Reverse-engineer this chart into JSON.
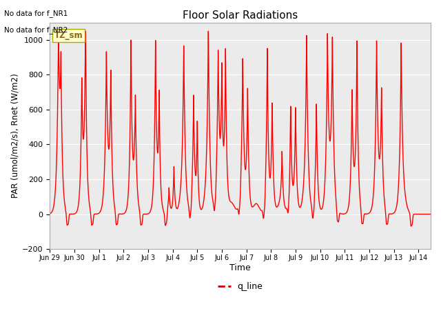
{
  "title": "Floor Solar Radiations",
  "xlabel": "Time",
  "ylabel": "PAR (umol/m2/s), Rnet (W/m2)",
  "ylim": [
    -200,
    1100
  ],
  "yticks": [
    -200,
    0,
    200,
    400,
    600,
    800,
    1000
  ],
  "line_color": "#FF0000",
  "line_width": 1.0,
  "legend_label": "q_line",
  "legend_line_color": "#CC0000",
  "annotation_text": "TZ_sm",
  "annotation_bg": "#FFFFCC",
  "note1": "No data for f_NR1",
  "note2": "No data for f_NR2",
  "bg_color": "#EBEBEB",
  "xtick_labels": [
    "Jun 29",
    "Jun 30",
    "Jul 1",
    "Jul 2",
    "Jul 3",
    "Jul 4",
    "Jul 5",
    "Jul 6",
    "Jul 7",
    "Jul 8",
    "Jul 9",
    "Jul 10",
    "Jul 11",
    "Jul 12",
    "Jul 13",
    "Jul 14"
  ]
}
